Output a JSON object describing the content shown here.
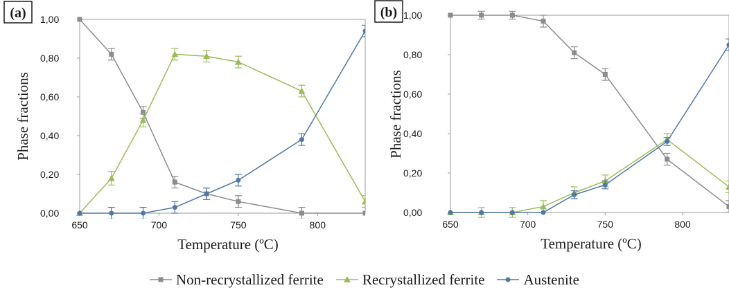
{
  "colors": {
    "non_recrystallized": "#8c8c8c",
    "recrystallized": "#9bbb59",
    "austenite": "#4f78a8",
    "axis": "#999999"
  },
  "legend": [
    {
      "name": "Non-recrystallized ferrite",
      "series": "non_recrystallized",
      "marker": "square"
    },
    {
      "name": "Recrystallized ferrite",
      "series": "recrystallized",
      "marker": "triangle"
    },
    {
      "name": "Austenite",
      "series": "austenite",
      "marker": "circle"
    }
  ],
  "chart_data": [
    {
      "panel_label": "(a)",
      "type": "line",
      "xlabel": "Temperature (ºC)",
      "ylabel": "Phase fractions",
      "xlim": [
        650,
        830
      ],
      "ylim": [
        0,
        1
      ],
      "x_ticks": [
        650,
        700,
        750,
        800
      ],
      "y_ticks": [
        "0,00",
        "0,20",
        "0,40",
        "0,60",
        "0,80",
        "1,00"
      ],
      "grid": false,
      "series": [
        {
          "name": "Non-recrystallized ferrite",
          "key": "non_recrystallized",
          "marker": "square",
          "x": [
            650,
            670,
            690,
            710,
            730,
            750,
            790,
            830
          ],
          "y": [
            1.0,
            0.82,
            0.52,
            0.16,
            0.1,
            0.06,
            0.0,
            0.0
          ],
          "err": [
            0.0,
            0.03,
            0.03,
            0.03,
            0.03,
            0.03,
            0.03,
            0.0
          ]
        },
        {
          "name": "Recrystallized ferrite",
          "key": "recrystallized",
          "marker": "triangle",
          "x": [
            650,
            670,
            690,
            710,
            730,
            750,
            790,
            830
          ],
          "y": [
            0.0,
            0.18,
            0.48,
            0.82,
            0.81,
            0.78,
            0.63,
            0.06
          ],
          "err": [
            0.0,
            0.035,
            0.035,
            0.03,
            0.03,
            0.03,
            0.03,
            0.03
          ]
        },
        {
          "name": "Austenite",
          "key": "austenite",
          "marker": "circle",
          "x": [
            650,
            670,
            690,
            710,
            730,
            750,
            790,
            830
          ],
          "y": [
            0.0,
            0.0,
            0.0,
            0.03,
            0.1,
            0.17,
            0.38,
            0.94
          ],
          "err": [
            0.0,
            0.03,
            0.03,
            0.03,
            0.03,
            0.03,
            0.03,
            0.03
          ]
        }
      ]
    },
    {
      "panel_label": "(b)",
      "type": "line",
      "xlabel": "Temperature (ºC)",
      "ylabel": "Phase fractions",
      "xlim": [
        650,
        830
      ],
      "ylim": [
        0,
        1
      ],
      "x_ticks": [
        650,
        700,
        750,
        800
      ],
      "y_ticks": [
        "0,00",
        "0,20",
        "0,40",
        "0,60",
        "0,80",
        "1,00"
      ],
      "grid": false,
      "series": [
        {
          "name": "Non-recrystallized ferrite",
          "key": "non_recrystallized",
          "marker": "square",
          "x": [
            650,
            670,
            690,
            710,
            730,
            750,
            790,
            830
          ],
          "y": [
            1.0,
            1.0,
            1.0,
            0.97,
            0.81,
            0.7,
            0.27,
            0.03
          ],
          "err": [
            0.0,
            0.02,
            0.02,
            0.03,
            0.03,
            0.03,
            0.03,
            0.03
          ]
        },
        {
          "name": "Recrystallized ferrite",
          "key": "recrystallized",
          "marker": "triangle",
          "x": [
            650,
            670,
            690,
            710,
            730,
            750,
            790,
            830
          ],
          "y": [
            0.0,
            0.0,
            0.0,
            0.03,
            0.1,
            0.16,
            0.37,
            0.13
          ],
          "err": [
            0.0,
            0.025,
            0.025,
            0.03,
            0.03,
            0.03,
            0.03,
            0.03
          ]
        },
        {
          "name": "Austenite",
          "key": "austenite",
          "marker": "circle",
          "x": [
            650,
            670,
            690,
            710,
            730,
            750,
            790,
            830
          ],
          "y": [
            0.0,
            0.0,
            0.0,
            0.0,
            0.09,
            0.14,
            0.36,
            0.85
          ],
          "err": [
            0.0,
            0.0,
            0.0,
            0.0,
            0.02,
            0.02,
            0.02,
            0.03
          ]
        }
      ]
    }
  ]
}
